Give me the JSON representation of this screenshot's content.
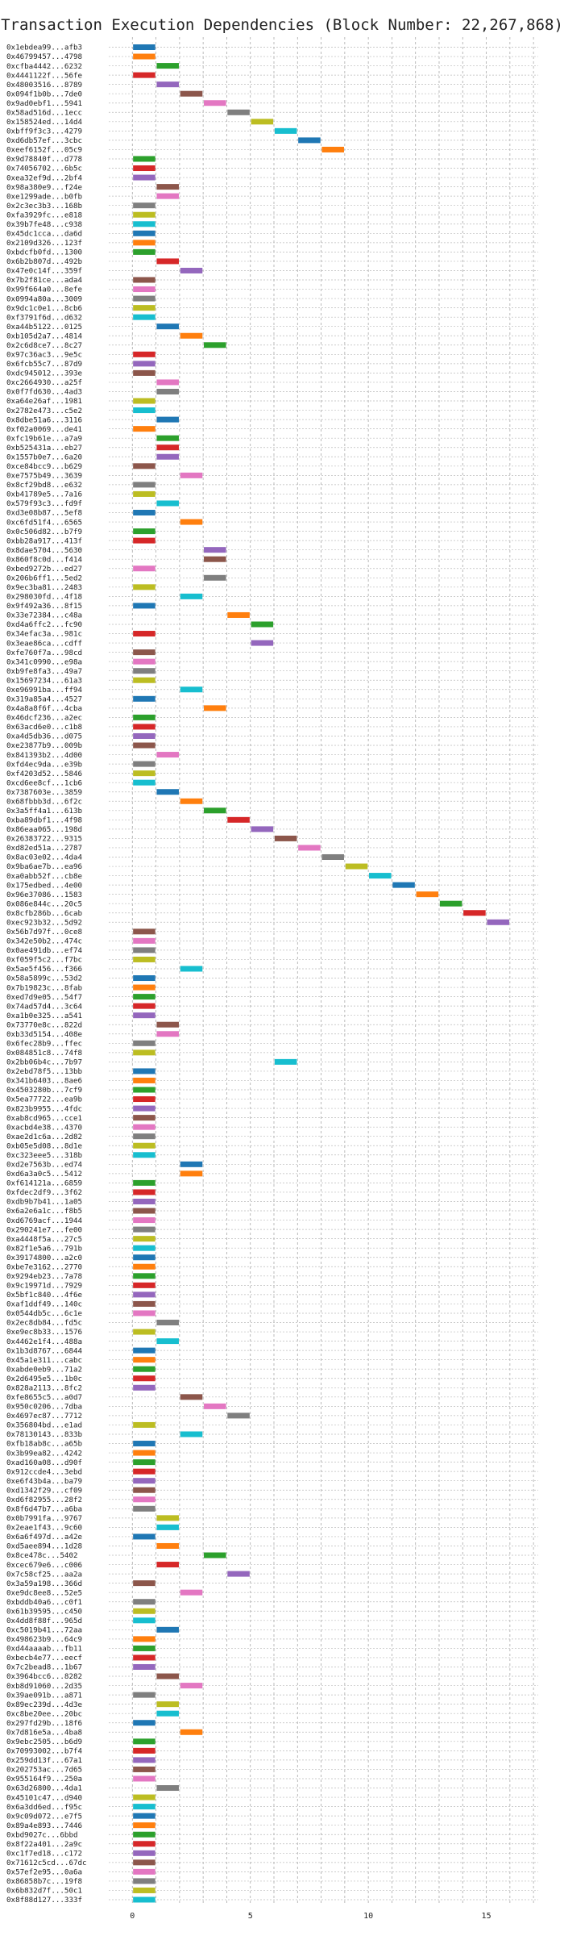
{
  "chart_data": {
    "type": "bar",
    "title": "Transaction Execution Dependencies (Block Number: 22,267,868)",
    "xlabel": "",
    "ylabel": "",
    "xlim": [
      -1,
      17.2
    ],
    "xticks": [
      0,
      5,
      10,
      15
    ],
    "grid": true,
    "colors": [
      "#1f77b4",
      "#ff7f0e",
      "#2ca02c",
      "#d62728",
      "#9467bd",
      "#8c564b",
      "#e377c2",
      "#7f7f7f",
      "#bcbd22",
      "#17becf"
    ],
    "bar_width": 1,
    "categories": [
      "0x1ebdea99...afb3",
      "0x46799457...4798",
      "0xcfba4442...6232",
      "0x4441122f...56fe",
      "0x48003516...8789",
      "0x094f1b0b...7de0",
      "0x9ad0ebf1...5941",
      "0x58ad516d...1ecc",
      "0x158524ed...14d4",
      "0xbff9f3c3...4279",
      "0xd6db57ef...3cbc",
      "0xeef6152f...05c9",
      "0x9d78840f...d778",
      "0x74056702...6b5c",
      "0xea32ef9d...2bf4",
      "0x98a380e9...f24e",
      "0xe1299ade...b0fb",
      "0x2c3ec3b3...168b",
      "0xfa3929fc...e818",
      "0x39b7fe48...c938",
      "0x45dc1cca...da6d",
      "0x2109d326...123f",
      "0xbdcfb0fd...1300",
      "0x6b2b807d...492b",
      "0x47e0c14f...359f",
      "0x7b2f81ce...ada4",
      "0x99f664a0...8efe",
      "0x0994a80a...3009",
      "0x9dc1c0e1...8cb6",
      "0xf3791f6d...d632",
      "0xa44b5122...0125",
      "0xb105d2a7...4814",
      "0x2c6d8ce7...8c27",
      "0x97c36ac3...9e5c",
      "0x6fcb55c7...87d9",
      "0xdc945012...393e",
      "0xc2664930...a25f",
      "0x0f7fd630...4ad3",
      "0xa64e26af...1981",
      "0x2782e473...c5e2",
      "0x8dbe51a6...3116",
      "0xf02a0069...de41",
      "0xfc19b61e...a7a9",
      "0xb525431a...eb27",
      "0x1557b0e7...6a20",
      "0xce84bcc9...b629",
      "0xe7575b49...3639",
      "0x8cf29bd8...e632",
      "0xb41789e5...7a16",
      "0x579f93c3...fd9f",
      "0xd3e08b87...5ef8",
      "0xc6fd51f4...6565",
      "0x0c506d82...b7f9",
      "0xbb28a917...413f",
      "0x8dae5704...5630",
      "0x860f8c0d...f414",
      "0xbed9272b...ed27",
      "0x206b6ff1...5ed2",
      "0x9ec3ba81...2483",
      "0x298030fd...4f18",
      "0x9f492a36...8f15",
      "0x33e72384...c48a",
      "0xd4a6ffc2...fc90",
      "0x34efac3a...981c",
      "0x3eae86ca...cdff",
      "0xfe760f7a...98cd",
      "0x341c0990...e98a",
      "0xb9fe8fa3...49a7",
      "0x15697234...61a3",
      "0xe96991ba...ff94",
      "0x319a85a4...4527",
      "0x4a8a8f6f...4cba",
      "0x46dcf236...a2ec",
      "0x63acd6e0...c1b8",
      "0xa4d5db36...d075",
      "0xe23877b9...009b",
      "0x841393b2...4d00",
      "0xfd4ec9da...e39b",
      "0xf4203d52...5846",
      "0xcd6ee8cf...1cb6",
      "0x7387603e...3859",
      "0x68fbbb3d...6f2c",
      "0x3a5ff4a1...613b",
      "0xba89dbf1...4f98",
      "0x86eaa065...198d",
      "0x26383722...9315",
      "0xd82ed51a...2787",
      "0x8ac03e02...4da4",
      "0x9ba6ae7b...ea96",
      "0xa0abb52f...cb8e",
      "0x175edbed...4e00",
      "0x96e37086...1583",
      "0x086e844c...20c5",
      "0x8cfb286b...6cab",
      "0xec923b32...5d92",
      "0x56b7d97f...0ce8",
      "0x342e50b2...474c",
      "0x0ae491db...ef74",
      "0xf059f5c2...f7bc",
      "0x5ae5f456...f366",
      "0x58a5899c...53d2",
      "0x7b19823c...8fab",
      "0xed7d9e05...54f7",
      "0x74ad57d4...3c64",
      "0xa1b0e325...a541",
      "0x73770e8c...822d",
      "0xb33d5154...408e",
      "0x6fec28b9...ffec",
      "0x084851c8...74f8",
      "0x2bb06b4c...7b97",
      "0x2ebd78f5...13bb",
      "0x341b6403...8ae6",
      "0x4503280b...7cf9",
      "0x5ea77722...ea9b",
      "0x823b9955...4fdc",
      "0xab8cd965...cce1",
      "0xacbd4e38...4370",
      "0xae2d1c6a...2d82",
      "0xb05e5d08...8d1e",
      "0xc323eee5...318b",
      "0xd2e7563b...ed74",
      "0xd6a3a0c5...5412",
      "0xf614121a...6859",
      "0xfdec2df9...3f62",
      "0xdb9b7b41...1a05",
      "0x6a2e6a1c...f8b5",
      "0xd6769acf...1944",
      "0x290241e7...fe00",
      "0xa4448f5a...27c5",
      "0x82f1e5a6...791b",
      "0x39174800...a2c0",
      "0xbe7e3162...2770",
      "0x9294eb23...7a78",
      "0x9c19971d...7929",
      "0x5bf1c840...4f6e",
      "0xaf1ddf49...140c",
      "0x0544db5c...6c1e",
      "0x2ec8db84...fd5c",
      "0xe9ec8b33...1576",
      "0x4462e1f4...488a",
      "0x1b3d8767...6844",
      "0x45a1e311...cabc",
      "0xabde0eb9...71a2",
      "0x2d6495e5...1b0c",
      "0x828a2113...8fc2",
      "0xfe8655c5...a0d7",
      "0x950c0206...7dba",
      "0x4697ec87...7712",
      "0x356804bd...e1ad",
      "0x78130143...833b",
      "0xfb18ab8c...a65b",
      "0x3b99ea82...4242",
      "0xad160a08...d90f",
      "0x912ccde4...3ebd",
      "0xe6f43b4a...ba79",
      "0xd1342f29...cf09",
      "0xd6f82955...28f2",
      "0x8f6d47b7...a6ba",
      "0x0b7991fa...9767",
      "0x2eae1f43...9c60",
      "0x6a6f497d...a42e",
      "0xd5aee894...1d28",
      "0x8ce478c...5402",
      "0xcec679e6...c006",
      "0x7c58cf25...aa2a",
      "0x3a59a198...366d",
      "0xe9dc8ee8...52e5",
      "0xbddb40a6...c0f1",
      "0x61b39595...c450",
      "0x4dd8f88f...965d",
      "0xc5019b41...72aa",
      "0x498623b9...64c9",
      "0xd44aaaab...fb11",
      "0xbecb4e77...eecf",
      "0x7c2bead8...1b67",
      "0x3964bcc6...8282",
      "0xb8d91060...2d35",
      "0x39ae091b...a871",
      "0x89ec239d...4d3e",
      "0xc8be20ee...20bc",
      "0x297fd29b...18f6",
      "0x7d816e5a...4ba8",
      "0x9ebc2505...b6d9",
      "0x70993002...b7f4",
      "0x259dd13f...67a1",
      "0x202753ac...7d65",
      "0x955164f9...250a",
      "0x63d26800...4da1",
      "0x45101c47...d940",
      "0x6a3dd6ed...f95c",
      "0x9c09d072...e7f5",
      "0x89a4e893...7446",
      "0xbd9027c...6bbd",
      "0x8f22a401...2a9c",
      "0xc1f7ed18...c172",
      "0x71612c5cd...67dc",
      "0x57ef2e95...0a6a",
      "0x86858b7c...19f8",
      "0x6b832d7f...50c1",
      "0x8f88d127...333f"
    ],
    "start": [
      0,
      0,
      1,
      0,
      1,
      2,
      3,
      4,
      5,
      6,
      7,
      8,
      0,
      0,
      0,
      1,
      1,
      0,
      0,
      0,
      0,
      0,
      0,
      1,
      2,
      0,
      0,
      0,
      0,
      0,
      1,
      2,
      3,
      0,
      0,
      0,
      1,
      1,
      0,
      0,
      1,
      0,
      1,
      1,
      1,
      0,
      2,
      0,
      0,
      1,
      0,
      2,
      0,
      0,
      3,
      3,
      0,
      3,
      0,
      2,
      0,
      4,
      5,
      0,
      5,
      0,
      0,
      0,
      0,
      2,
      0,
      3,
      0,
      0,
      0,
      0,
      1,
      0,
      0,
      0,
      1,
      2,
      3,
      4,
      5,
      6,
      7,
      8,
      9,
      10,
      11,
      12,
      13,
      14,
      15,
      0,
      0,
      0,
      0,
      2,
      0,
      0,
      0,
      0,
      0,
      1,
      1,
      0,
      0,
      6,
      0,
      0,
      0,
      0,
      0,
      0,
      0,
      0,
      0,
      0,
      2,
      2,
      0,
      0,
      0,
      0,
      0,
      0,
      0,
      0,
      0,
      0,
      0,
      0,
      0,
      0,
      0,
      1,
      0,
      1,
      0,
      0,
      0,
      0,
      0,
      2,
      3,
      4,
      0,
      2,
      0,
      0,
      0,
      0,
      0,
      0,
      0,
      0,
      1,
      1,
      0,
      1,
      3,
      1,
      4,
      0,
      2,
      0,
      0,
      0,
      1,
      0,
      0,
      0,
      0,
      1,
      2,
      0,
      1,
      1,
      0,
      2,
      0,
      0,
      0,
      0,
      0,
      1,
      0,
      0,
      0,
      0,
      0,
      0,
      0,
      0,
      0,
      0,
      0,
      0
    ],
    "values": [
      1,
      1,
      1,
      1,
      1,
      1,
      1,
      1,
      1,
      1,
      1,
      1,
      1,
      1,
      1,
      1,
      1,
      1,
      1,
      1,
      1,
      1,
      1,
      1,
      1,
      1,
      1,
      1,
      1,
      1,
      1,
      1,
      1,
      1,
      1,
      1,
      1,
      1,
      1,
      1,
      1,
      1,
      1,
      1,
      1,
      1,
      1,
      1,
      1,
      1,
      1,
      1,
      1,
      1,
      1,
      1,
      1,
      1,
      1,
      1,
      1,
      1,
      1,
      1,
      1,
      1,
      1,
      1,
      1,
      1,
      1,
      1,
      1,
      1,
      1,
      1,
      1,
      1,
      1,
      1,
      1,
      1,
      1,
      1,
      1,
      1,
      1,
      1,
      1,
      1,
      1,
      1,
      1,
      1,
      1,
      1,
      1,
      1,
      1,
      1,
      1,
      1,
      1,
      1,
      1,
      1,
      1,
      1,
      1,
      1,
      1,
      1,
      1,
      1,
      1,
      1,
      1,
      1,
      1,
      1,
      1,
      1,
      1,
      1,
      1,
      1,
      1,
      1,
      1,
      1,
      1,
      1,
      1,
      1,
      1,
      1,
      1,
      1,
      1,
      1,
      1,
      1,
      1,
      1,
      1,
      1,
      1,
      1,
      1,
      1,
      1,
      1,
      1,
      1,
      1,
      1,
      1,
      1,
      1,
      1,
      1,
      1,
      1,
      1,
      1,
      1,
      1,
      1,
      1,
      1,
      1,
      1,
      1,
      1,
      1,
      1,
      1,
      1,
      1,
      1,
      1,
      1,
      1,
      1,
      1,
      1,
      1,
      1,
      1,
      1,
      1,
      1,
      1,
      1,
      1,
      1,
      1,
      1,
      1,
      1
    ]
  }
}
